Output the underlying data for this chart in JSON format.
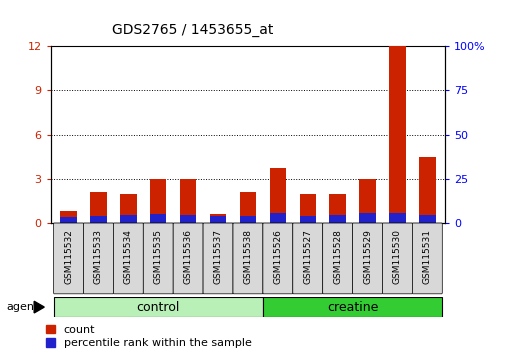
{
  "title": "GDS2765 / 1453655_at",
  "samples": [
    "GSM115532",
    "GSM115533",
    "GSM115534",
    "GSM115535",
    "GSM115536",
    "GSM115537",
    "GSM115538",
    "GSM115526",
    "GSM115527",
    "GSM115528",
    "GSM115529",
    "GSM115530",
    "GSM115531"
  ],
  "groups": [
    {
      "label": "control",
      "color": "#b8f0b8",
      "start": 0,
      "end": 7
    },
    {
      "label": "creatine",
      "color": "#33cc33",
      "start": 7,
      "end": 13
    }
  ],
  "agent_label": "agent",
  "count_values": [
    0.8,
    2.1,
    2.0,
    3.0,
    3.0,
    0.6,
    2.1,
    3.7,
    2.0,
    2.0,
    3.0,
    12.0,
    4.5
  ],
  "percentile_values": [
    0.4,
    0.5,
    0.55,
    0.6,
    0.55,
    0.5,
    0.5,
    0.7,
    0.5,
    0.55,
    0.65,
    0.7,
    0.55
  ],
  "count_color": "#cc2200",
  "percentile_color": "#2222cc",
  "left_ylim": [
    0,
    12
  ],
  "left_yticks": [
    0,
    3,
    6,
    9,
    12
  ],
  "right_ylim": [
    0,
    100
  ],
  "right_yticks": [
    0,
    25,
    50,
    75,
    100
  ],
  "right_yticklabels": [
    "0",
    "25",
    "50",
    "75",
    "100%"
  ],
  "bar_width": 0.55,
  "legend_count_label": "count",
  "legend_percentile_label": "percentile rank within the sample"
}
